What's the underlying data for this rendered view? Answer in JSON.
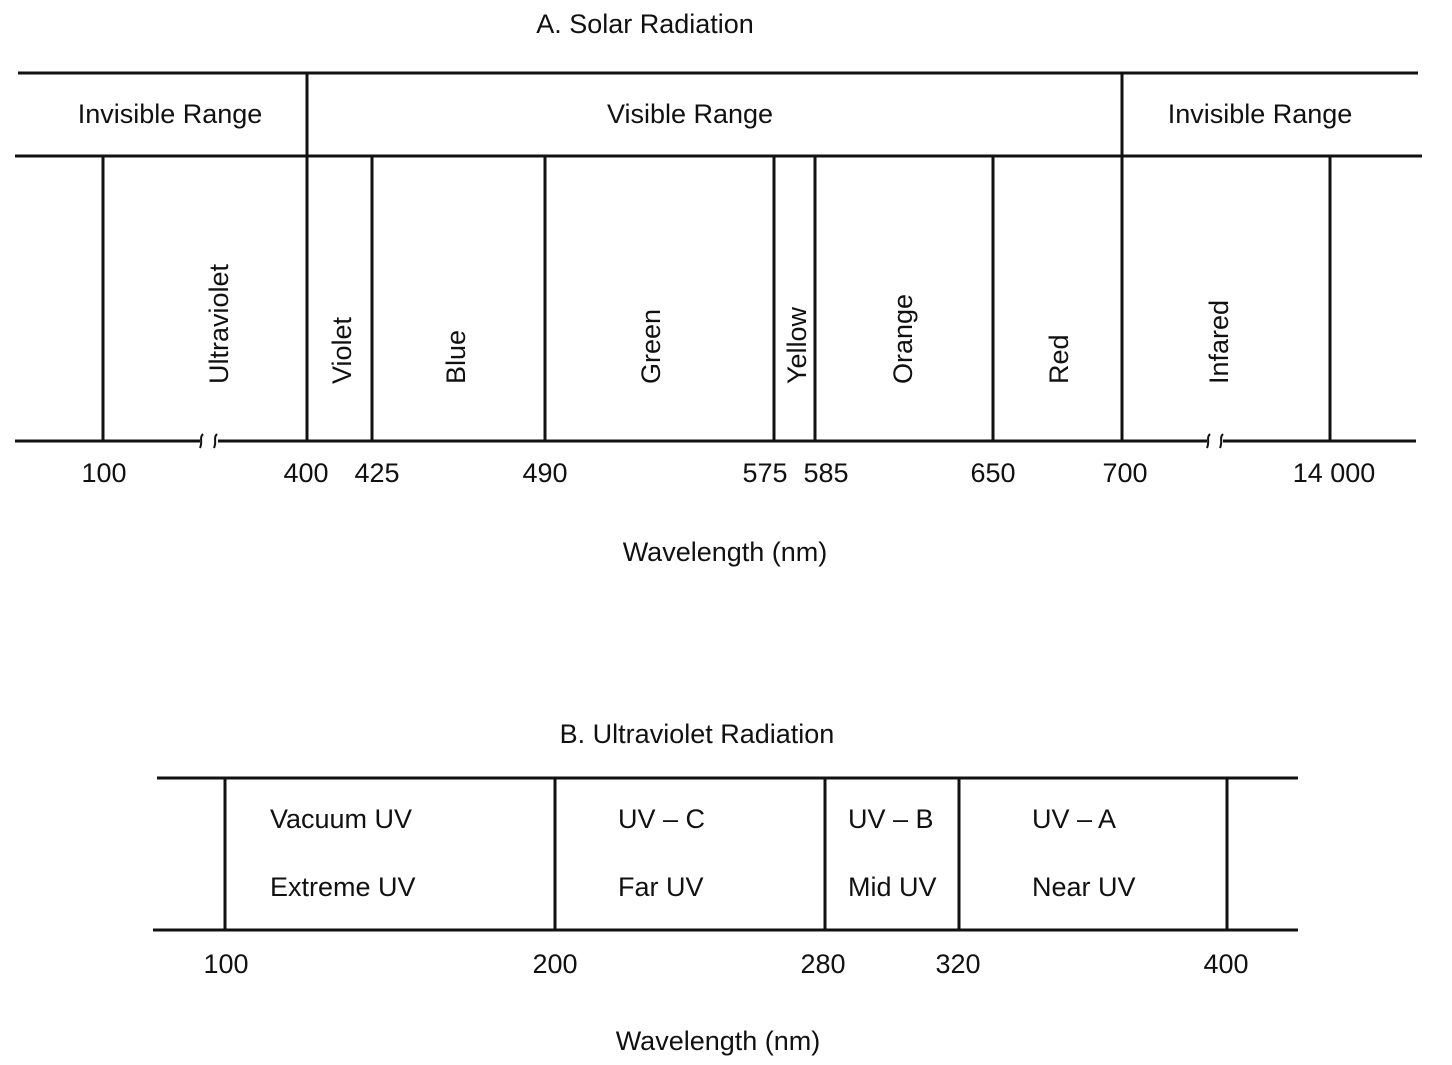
{
  "panel_a": {
    "title": "A. Solar Radiation",
    "ranges": [
      "Invisible Range",
      "Visible Range",
      "Invisible Range"
    ],
    "bands": [
      "Ultraviolet",
      "Violet",
      "Blue",
      "Green",
      "Yellow",
      "Orange",
      "Red",
      "Infared"
    ],
    "ticks": [
      "100",
      "400",
      "425",
      "490",
      "575",
      "585",
      "650",
      "700",
      "14 000"
    ],
    "xlabel": "Wavelength (nm)"
  },
  "panel_b": {
    "title": "B. Ultraviolet Radiation",
    "cells": [
      {
        "line1": "Vacuum UV",
        "line2": "Extreme UV"
      },
      {
        "line1": "UV – C",
        "line2": "Far UV"
      },
      {
        "line1": "UV – B",
        "line2": "Mid UV"
      },
      {
        "line1": "UV – A",
        "line2": "Near UV"
      }
    ],
    "ticks": [
      "100",
      "200",
      "280",
      "320",
      "400"
    ],
    "xlabel": "Wavelength (nm)"
  }
}
